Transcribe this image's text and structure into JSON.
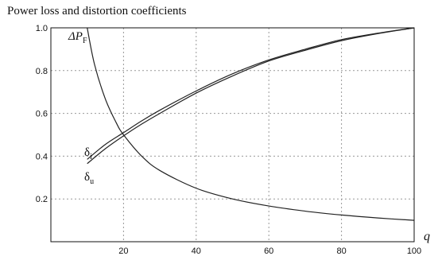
{
  "title": "Power loss and distortion coefficients",
  "chart_data": {
    "type": "line",
    "title": "Power loss and distortion coefficients",
    "xlabel": "q",
    "ylabel": "",
    "xlim": [
      0,
      100
    ],
    "ylim": [
      0,
      1.0
    ],
    "xticks": [
      20,
      40,
      60,
      80,
      100
    ],
    "yticks": [
      0.2,
      0.4,
      0.6,
      0.8,
      1.0
    ],
    "xtick_labels": [
      "20",
      "40",
      "60",
      "80",
      "100"
    ],
    "ytick_labels": [
      "0.2",
      "0.4",
      "0.6",
      "0.8",
      "1.0"
    ],
    "grid": true,
    "grid_style": "dotted",
    "series": [
      {
        "name": "ΔP_F",
        "label_main": "ΔP",
        "label_sub": "F",
        "color": "#222222",
        "x": [
          10,
          12,
          15,
          18,
          20,
          25,
          30,
          40,
          50,
          60,
          70,
          80,
          90,
          100
        ],
        "y": [
          1.0,
          0.83,
          0.667,
          0.556,
          0.5,
          0.4,
          0.333,
          0.25,
          0.2,
          0.167,
          0.143,
          0.125,
          0.111,
          0.1
        ]
      },
      {
        "name": "δ_i",
        "label_main": "δ",
        "label_sub": "i",
        "color": "#222222",
        "x": [
          10,
          15,
          20,
          25,
          30,
          40,
          50,
          60,
          70,
          80,
          90,
          100
        ],
        "y": [
          0.385,
          0.455,
          0.51,
          0.565,
          0.615,
          0.705,
          0.785,
          0.85,
          0.9,
          0.945,
          0.975,
          1.0
        ]
      },
      {
        "name": "δ_u",
        "label_main": "δ",
        "label_sub": "u",
        "color": "#222222",
        "x": [
          10,
          15,
          20,
          25,
          30,
          40,
          50,
          60,
          70,
          80,
          90,
          100
        ],
        "y": [
          0.365,
          0.435,
          0.495,
          0.55,
          0.6,
          0.695,
          0.775,
          0.845,
          0.895,
          0.94,
          0.973,
          1.0
        ]
      }
    ]
  }
}
